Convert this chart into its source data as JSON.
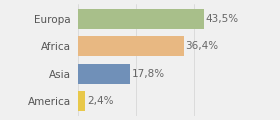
{
  "categories": [
    "Europa",
    "Africa",
    "Asia",
    "America"
  ],
  "values": [
    43.5,
    36.4,
    17.8,
    2.4
  ],
  "labels": [
    "43,5%",
    "36,4%",
    "17,8%",
    "2,4%"
  ],
  "bar_colors": [
    "#a8bf8a",
    "#e8b882",
    "#7090b8",
    "#e8c84a"
  ],
  "background_color": "#f0f0f0",
  "xlim": [
    0,
    58
  ],
  "bar_height": 0.72,
  "label_fontsize": 7.5,
  "category_fontsize": 7.5,
  "figsize": [
    2.8,
    1.2
  ],
  "dpi": 100
}
